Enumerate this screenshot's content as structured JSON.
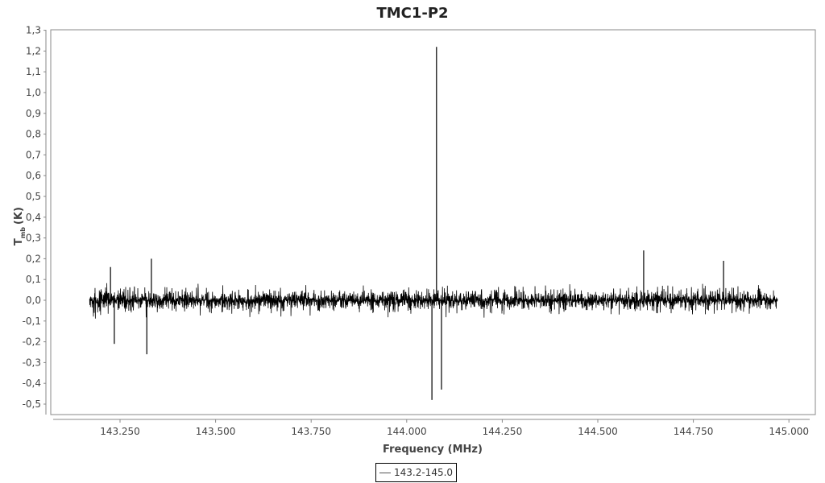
{
  "chart_data": {
    "type": "line",
    "title": "TMC1-P2",
    "xlabel": "Frequency (MHz)",
    "ylabel": "T",
    "ylabel_sub": "mb",
    "ylabel_unit": "(K)",
    "xlim": [
      143.09,
      145.09
    ],
    "ylim": [
      -0.55,
      1.3
    ],
    "x_ticks": [
      "143.250",
      "143.500",
      "143.750",
      "144.000",
      "144.250",
      "144.500",
      "144.750",
      "145.000"
    ],
    "x_tick_values": [
      143.25,
      143.5,
      143.75,
      144.0,
      144.25,
      144.5,
      144.75,
      145.0
    ],
    "y_ticks": [
      "1,3",
      "1,2",
      "1,1",
      "1,0",
      "0,9",
      "0,8",
      "0,7",
      "0,6",
      "0,5",
      "0,4",
      "0,3",
      "0,2",
      "0,1",
      "0,0",
      "-0,1",
      "-0,2",
      "-0,3",
      "-0,4",
      "-0,5"
    ],
    "y_tick_values": [
      1.3,
      1.2,
      1.1,
      1.0,
      0.9,
      0.8,
      0.7,
      0.6,
      0.5,
      0.4,
      0.3,
      0.2,
      0.1,
      0.0,
      -0.1,
      -0.2,
      -0.3,
      -0.4,
      -0.5
    ],
    "grid": false,
    "legend_position": "bottom-center",
    "series": [
      {
        "name": "143.2-145.0",
        "color": "#000000",
        "x_range": [
          143.17,
          144.97
        ],
        "baseline": 0.0,
        "noise_peak": 0.07,
        "spikes": [
          {
            "x": 143.225,
            "y": 0.16
          },
          {
            "x": 143.235,
            "y": -0.21
          },
          {
            "x": 143.32,
            "y": -0.26
          },
          {
            "x": 143.332,
            "y": 0.2
          },
          {
            "x": 144.066,
            "y": -0.48
          },
          {
            "x": 144.078,
            "y": 1.22
          },
          {
            "x": 144.091,
            "y": -0.43
          },
          {
            "x": 144.62,
            "y": 0.24
          },
          {
            "x": 144.829,
            "y": 0.19
          }
        ]
      }
    ]
  }
}
